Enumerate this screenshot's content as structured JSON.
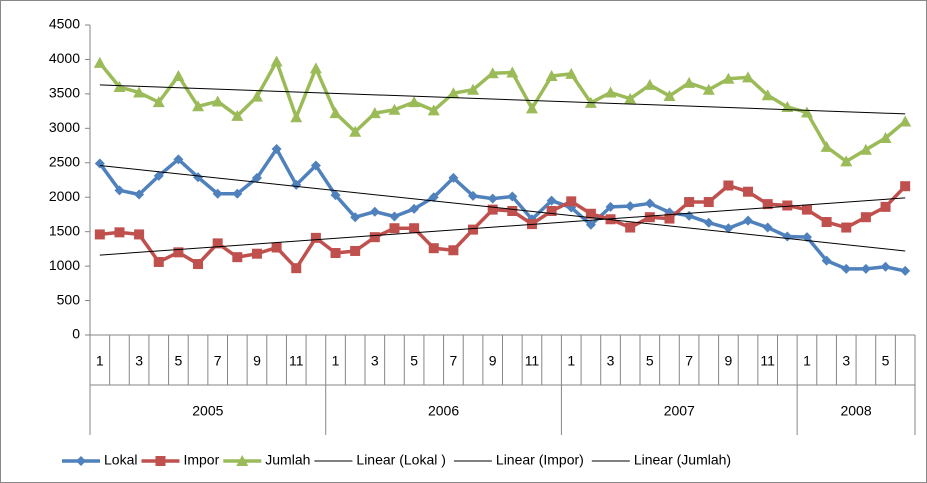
{
  "chart_data": {
    "type": "line",
    "categories": [
      "1",
      null,
      "3",
      null,
      "5",
      null,
      "7",
      null,
      "9",
      null,
      "11",
      null,
      "1",
      null,
      "3",
      null,
      "5",
      null,
      "7",
      null,
      "9",
      null,
      "11",
      null,
      "1",
      null,
      "3",
      null,
      "5",
      null,
      "7",
      null,
      "9",
      null,
      "11",
      null,
      "1",
      null,
      "3",
      null,
      "5",
      null
    ],
    "years": [
      "2005",
      null,
      null,
      null,
      null,
      null,
      null,
      null,
      null,
      null,
      null,
      null,
      "2006",
      null,
      null,
      null,
      null,
      null,
      null,
      null,
      null,
      null,
      null,
      null,
      "2007",
      null,
      null,
      null,
      null,
      null,
      null,
      null,
      null,
      null,
      null,
      null,
      "2008",
      null,
      null,
      null,
      null,
      null
    ],
    "series": [
      {
        "name": "Lokal",
        "color": "#4f81bd",
        "marker": "diamond",
        "values": [
          2490,
          2100,
          2040,
          2310,
          2550,
          2290,
          2050,
          2050,
          2280,
          2700,
          2180,
          2460,
          2030,
          1710,
          1790,
          1720,
          1830,
          2000,
          2280,
          2020,
          1980,
          2010,
          1680,
          1950,
          1850,
          1600,
          1860,
          1870,
          1910,
          1780,
          1730,
          1630,
          1550,
          1660,
          1560,
          1430,
          1420,
          1080,
          960,
          960,
          990,
          930
        ]
      },
      {
        "name": "Impor",
        "color": "#c0504d",
        "marker": "square",
        "values": [
          1460,
          1490,
          1460,
          1060,
          1200,
          1030,
          1330,
          1130,
          1180,
          1270,
          970,
          1410,
          1190,
          1220,
          1420,
          1550,
          1550,
          1260,
          1230,
          1530,
          1820,
          1800,
          1610,
          1800,
          1940,
          1760,
          1680,
          1560,
          1710,
          1690,
          1930,
          1930,
          2170,
          2080,
          1900,
          1880,
          1820,
          1640,
          1560,
          1710,
          1860,
          2160
        ]
      },
      {
        "name": "Jumlah",
        "color": "#9bbb59",
        "marker": "triangle",
        "values": [
          3950,
          3600,
          3520,
          3380,
          3760,
          3320,
          3390,
          3180,
          3460,
          3970,
          3160,
          3870,
          3220,
          2950,
          3220,
          3270,
          3380,
          3260,
          3510,
          3560,
          3800,
          3810,
          3290,
          3760,
          3790,
          3370,
          3520,
          3430,
          3630,
          3470,
          3660,
          3560,
          3720,
          3740,
          3480,
          3310,
          3230,
          2730,
          2520,
          2690,
          2860,
          3100
        ]
      }
    ],
    "trendlines": [
      {
        "name": "Linear (Lokal )",
        "color": "#000000",
        "start": 2460,
        "end": 1220
      },
      {
        "name": "Linear (Impor)",
        "color": "#000000",
        "start": 1160,
        "end": 1990
      },
      {
        "name": "Linear (Jumlah)",
        "color": "#000000",
        "start": 3630,
        "end": 3210
      }
    ],
    "ylim": [
      0,
      4500
    ],
    "yticks": [
      0,
      500,
      1000,
      1500,
      2000,
      2500,
      3000,
      3500,
      4000,
      4500
    ],
    "grid": false,
    "legend": "bottom"
  }
}
